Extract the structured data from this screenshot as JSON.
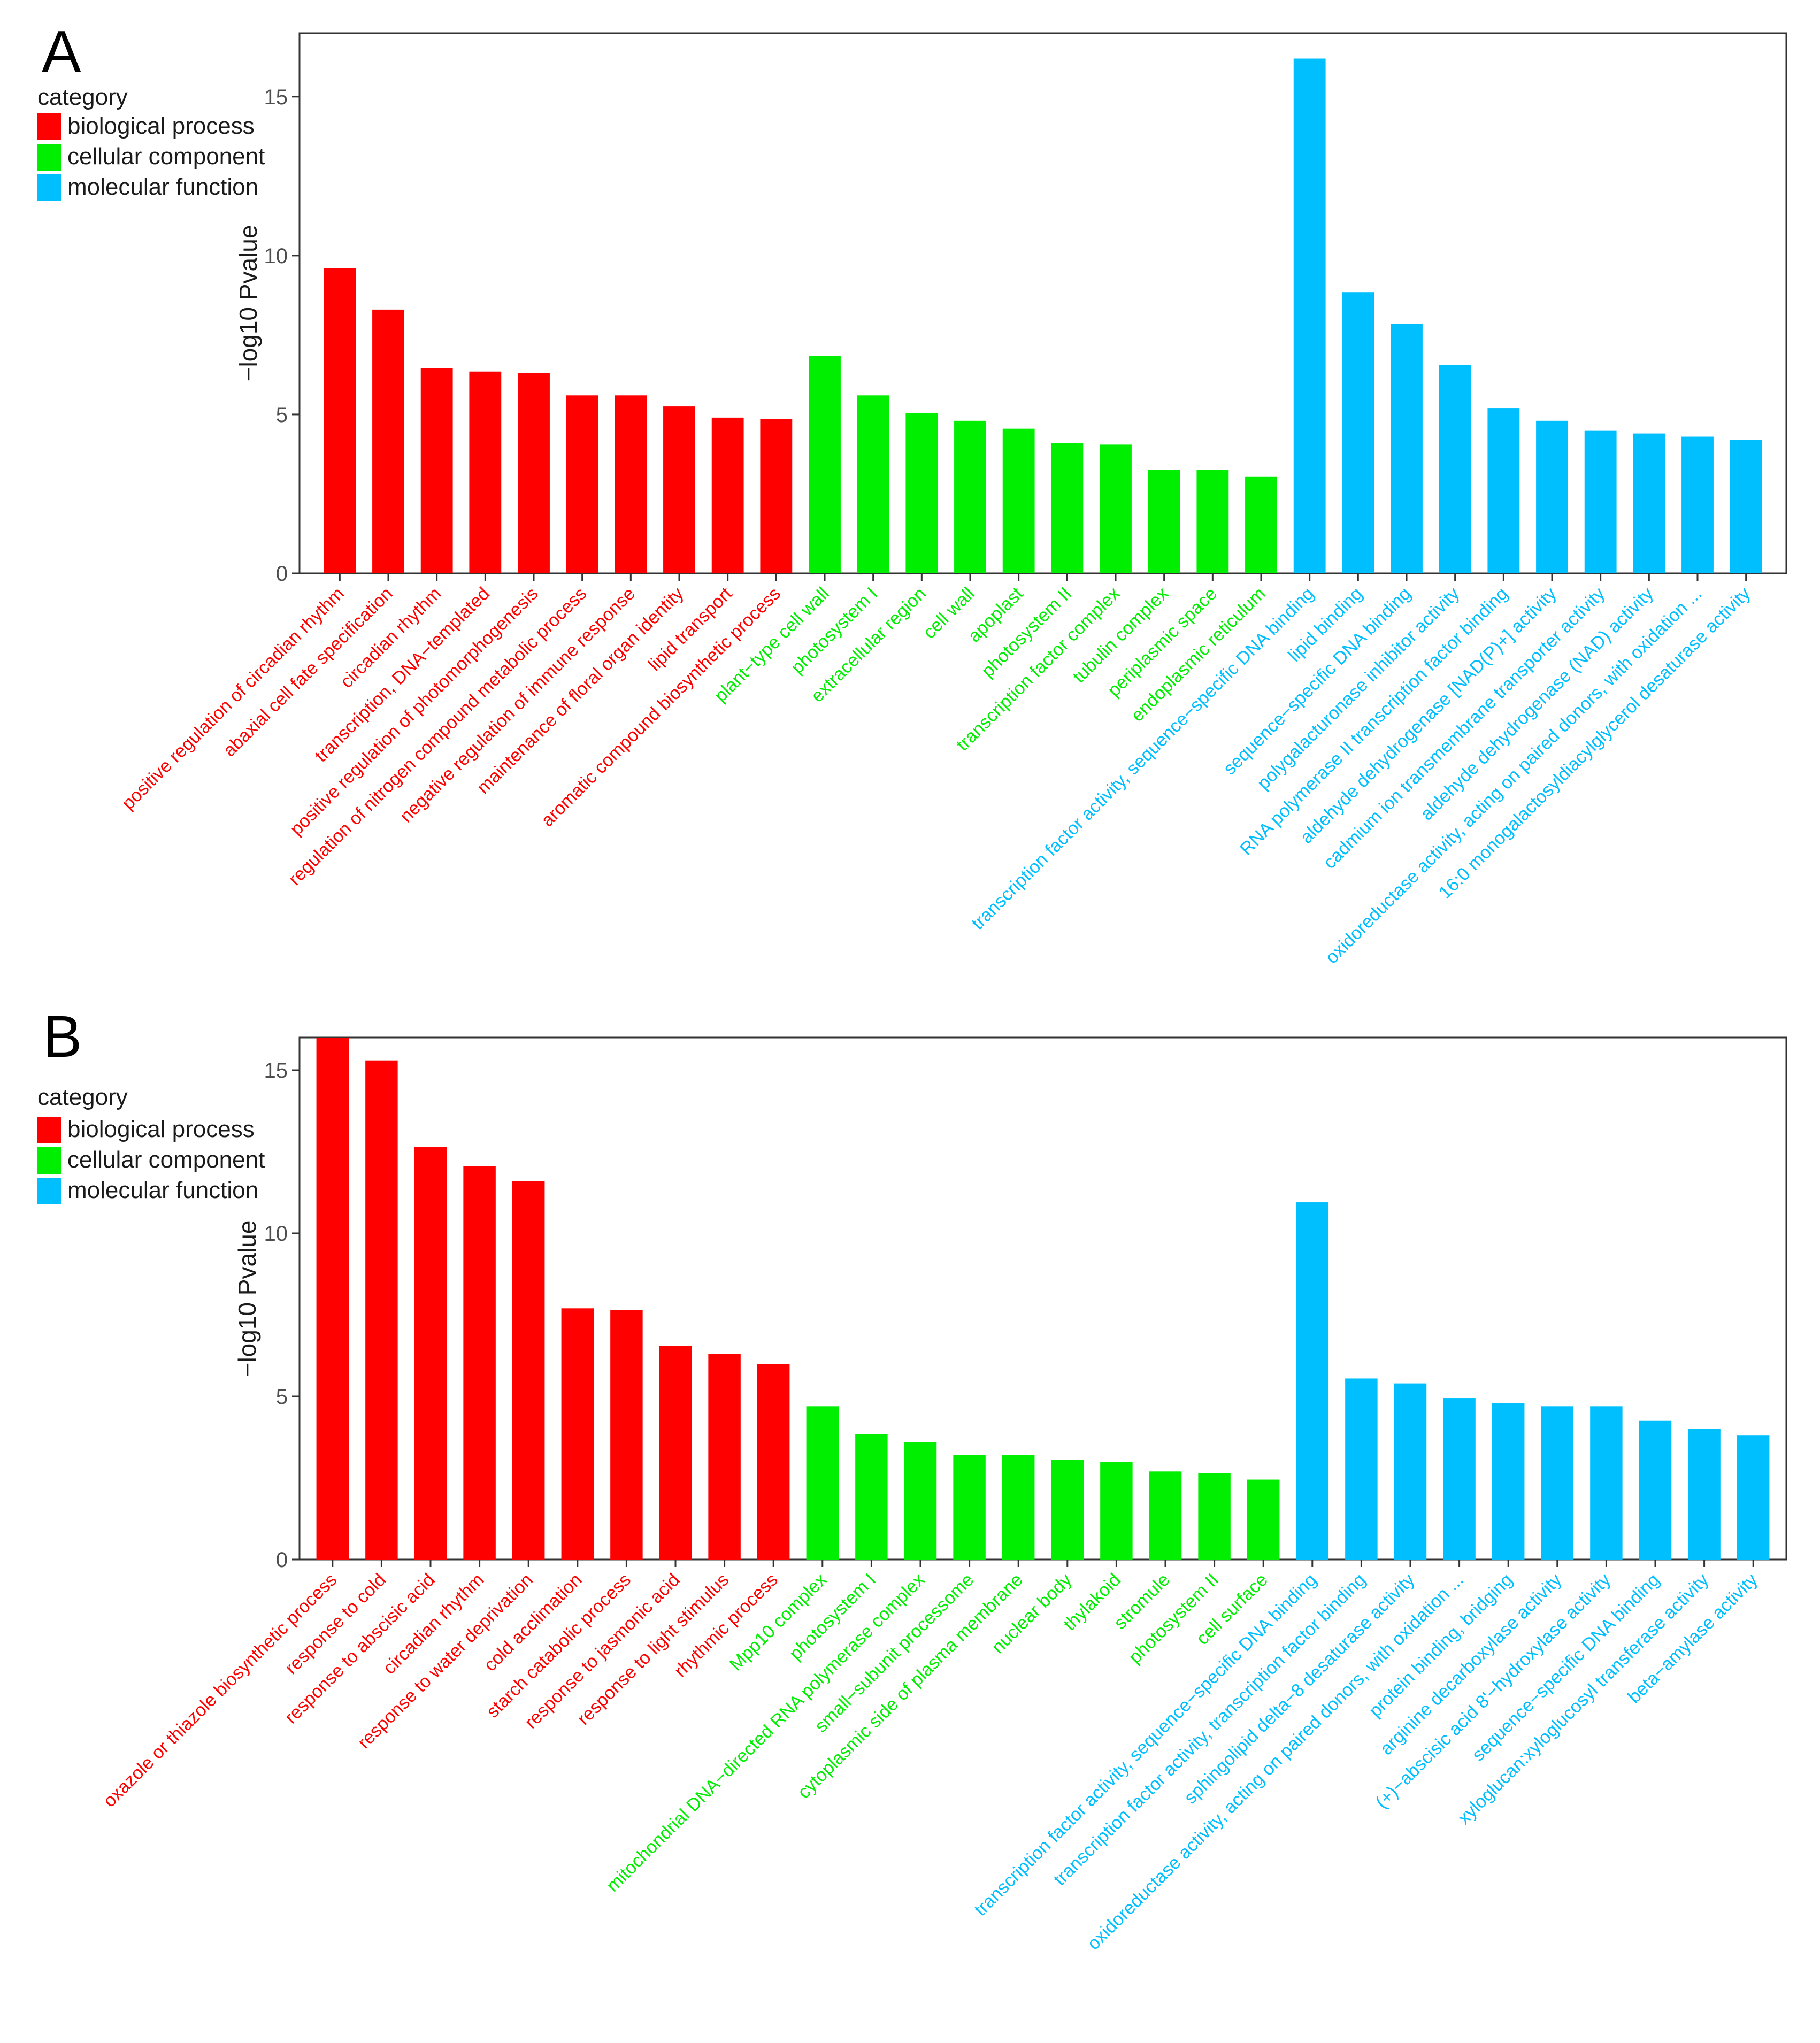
{
  "legend": {
    "title": "category",
    "items": [
      {
        "label": "biological process",
        "color": "#ff0000"
      },
      {
        "label": "cellular component",
        "color": "#00ee00"
      },
      {
        "label": "molecular function",
        "color": "#00bfff"
      }
    ]
  },
  "chart_data": [
    {
      "id": "A",
      "type": "bar",
      "panel_label": "A",
      "ylabel": "−log10 Pvalue",
      "xlabel": "",
      "ylim": [
        0,
        17.0
      ],
      "yticks": [
        0,
        5,
        10,
        15
      ],
      "grid": false,
      "categories": [
        "positive regulation of circadian rhythm",
        "abaxial cell fate specification",
        "circadian rhythm",
        "transcription, DNA−templated",
        "positive regulation of photomorphogenesis",
        "regulation of nitrogen compound metabolic process",
        "negative regulation of immune response",
        "maintenance of floral organ identity",
        "lipid transport",
        "aromatic compound biosynthetic process",
        "plant−type cell wall",
        "photosystem I",
        "extracellular region",
        "cell wall",
        "apoplast",
        "photosystem II",
        "transcription factor complex",
        "tubulin complex",
        "periplasmic space",
        "endoplasmic reticulum",
        "transcription factor activity, sequence−specific DNA binding",
        "lipid binding",
        "sequence−specific DNA binding",
        "polygalacturonase inhibitor activity",
        "RNA polymerase II transcription factor binding",
        "aldehyde dehydrogenase [NAD(P)+] activity",
        "cadmium ion transmembrane transporter activity",
        "aldehyde dehydrogenase (NAD) activity",
        "oxidoreductase activity, acting on paired donors, with oxidation ...",
        "16:0 monogalactosyldiacylglycerol desaturase activity"
      ],
      "groups": [
        "biological process",
        "biological process",
        "biological process",
        "biological process",
        "biological process",
        "biological process",
        "biological process",
        "biological process",
        "biological process",
        "biological process",
        "cellular component",
        "cellular component",
        "cellular component",
        "cellular component",
        "cellular component",
        "cellular component",
        "cellular component",
        "cellular component",
        "cellular component",
        "cellular component",
        "molecular function",
        "molecular function",
        "molecular function",
        "molecular function",
        "molecular function",
        "molecular function",
        "molecular function",
        "molecular function",
        "molecular function",
        "molecular function"
      ],
      "values": [
        9.6,
        8.3,
        6.45,
        6.35,
        6.3,
        5.6,
        5.6,
        5.25,
        4.9,
        4.85,
        6.85,
        5.6,
        5.05,
        4.8,
        4.55,
        4.1,
        4.05,
        3.25,
        3.25,
        3.05,
        16.2,
        8.85,
        7.85,
        6.55,
        5.2,
        4.8,
        4.5,
        4.4,
        4.3,
        4.2
      ]
    },
    {
      "id": "B",
      "type": "bar",
      "panel_label": "B",
      "ylabel": "−log10 Pvalue",
      "xlabel": "",
      "ylim": [
        0,
        16.0
      ],
      "yticks": [
        0,
        5,
        10,
        15
      ],
      "grid": false,
      "categories": [
        "oxazole or thiazole biosynthetic process",
        "response to cold",
        "response to abscisic acid",
        "circadian rhythm",
        "response to water deprivation",
        "cold acclimation",
        "starch catabolic process",
        "response to jasmonic acid",
        "response to light stimulus",
        "rhythmic process",
        "Mpp10 complex",
        "photosystem I",
        "mitochondrial DNA−directed RNA polymerase complex",
        "small−subunit processome",
        "cytoplasmic side of plasma membrane",
        "nuclear body",
        "thylakoid",
        "stromule",
        "photosystem II",
        "cell surface",
        "transcription factor activity, sequence−specific DNA binding",
        "transcription factor activity, transcription factor binding",
        "sphingolipid delta−8 desaturase activity",
        "oxidoreductase activity, acting on paired donors, with oxidation ...",
        "protein binding, bridging",
        "arginine decarboxylase activity",
        "(+)−abscisic acid 8'−hydroxylase activity",
        "sequence−specific DNA binding",
        "xyloglucan:xyloglucosyl transferase activity",
        "beta−amylase activity"
      ],
      "groups": [
        "biological process",
        "biological process",
        "biological process",
        "biological process",
        "biological process",
        "biological process",
        "biological process",
        "biological process",
        "biological process",
        "biological process",
        "cellular component",
        "cellular component",
        "cellular component",
        "cellular component",
        "cellular component",
        "cellular component",
        "cellular component",
        "cellular component",
        "cellular component",
        "cellular component",
        "molecular function",
        "molecular function",
        "molecular function",
        "molecular function",
        "molecular function",
        "molecular function",
        "molecular function",
        "molecular function",
        "molecular function",
        "molecular function"
      ],
      "values": [
        16.05,
        15.3,
        12.65,
        12.05,
        11.6,
        7.7,
        7.65,
        6.55,
        6.3,
        6.0,
        4.7,
        3.85,
        3.6,
        3.2,
        3.2,
        3.05,
        3.0,
        2.7,
        2.65,
        2.45,
        10.95,
        5.55,
        5.4,
        4.95,
        4.8,
        4.7,
        4.7,
        4.25,
        4.0,
        3.8
      ]
    }
  ]
}
